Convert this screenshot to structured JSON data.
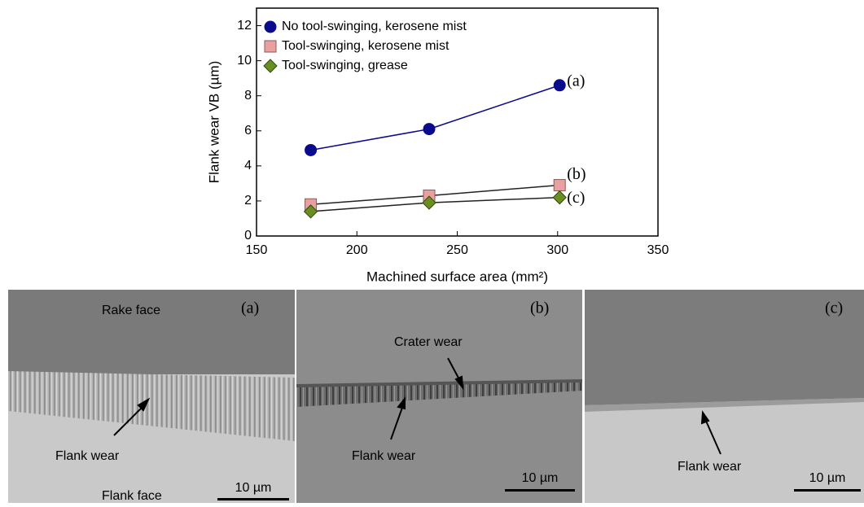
{
  "chart_data": {
    "type": "line",
    "xlabel": "Machined surface area (mm²)",
    "ylabel": "Flank wear VB (µm)",
    "xlim": [
      150,
      350
    ],
    "xticks": [
      150,
      200,
      250,
      300,
      350
    ],
    "ylim": [
      0,
      13
    ],
    "yticks": [
      0,
      2,
      4,
      6,
      8,
      10,
      12
    ],
    "x": [
      177,
      236,
      301
    ],
    "legend": "upper left",
    "series": [
      {
        "name": "No tool-swinging, kerosene mist",
        "color": "#0a0a8c",
        "marker": "circle",
        "values": [
          4.9,
          6.1,
          8.6
        ]
      },
      {
        "name": "Tool-swinging, kerosene mist",
        "color": "#e8a0a0",
        "marker": "square",
        "values": [
          1.8,
          2.3,
          2.9
        ]
      },
      {
        "name": "Tool-swinging, grease",
        "color": "#6b8e23",
        "marker": "diamond",
        "values": [
          1.4,
          1.9,
          2.2
        ]
      }
    ],
    "annotations": [
      "(a)",
      "(b)",
      "(c)"
    ]
  },
  "images": [
    {
      "panel": "(a)",
      "labels": [
        "Rake face",
        "Flank wear",
        "Flank face"
      ],
      "scale": "10 µm"
    },
    {
      "panel": "(b)",
      "labels": [
        "Crater wear",
        "Flank wear"
      ],
      "scale": "10 µm"
    },
    {
      "panel": "(c)",
      "labels": [
        "Flank wear"
      ],
      "scale": "10 µm"
    }
  ]
}
